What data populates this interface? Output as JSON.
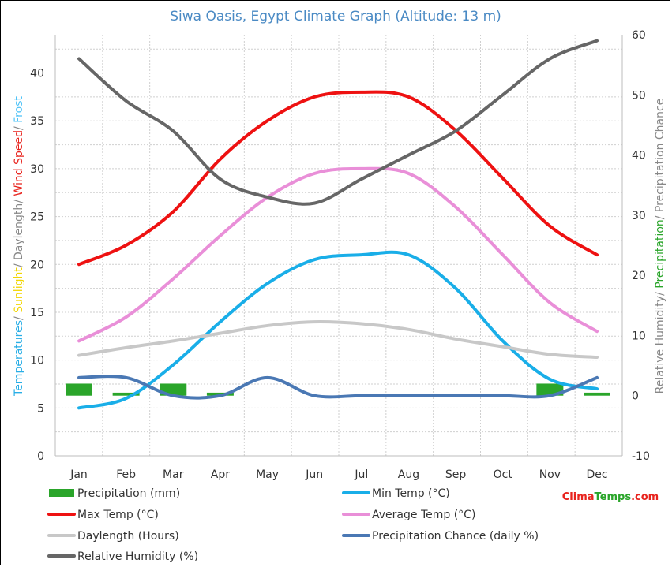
{
  "chart_data": {
    "type": "line",
    "title": "Siwa Oasis, Egypt Climate Graph (Altitude: 13 m)",
    "categories": [
      "Jan",
      "Feb",
      "Mar",
      "Apr",
      "May",
      "Jun",
      "Jul",
      "Aug",
      "Sep",
      "Oct",
      "Nov",
      "Dec"
    ],
    "left_axis": {
      "label_parts": [
        {
          "text": "Temperatures",
          "color": "#29aee6"
        },
        {
          "text": "/ ",
          "color": "#888888"
        },
        {
          "text": "Sunlight",
          "color": "#f2d600"
        },
        {
          "text": "/ Daylength",
          "color": "#888888"
        },
        {
          "text": "/ ",
          "color": "#888888"
        },
        {
          "text": "Wind Speed",
          "color": "#e8231d"
        },
        {
          "text": "/ ",
          "color": "#888888"
        },
        {
          "text": "Frost",
          "color": "#4fc3f7"
        }
      ],
      "ylim": [
        0,
        44
      ],
      "ticks": [
        0,
        5,
        10,
        15,
        20,
        25,
        30,
        35,
        40
      ]
    },
    "right_axis": {
      "label_parts": [
        {
          "text": "Relative Humidity",
          "color": "#888888"
        },
        {
          "text": "/ ",
          "color": "#888888"
        },
        {
          "text": "Precipitation",
          "color": "#2aa52a"
        },
        {
          "text": "/ Precipitation Chance",
          "color": "#888888"
        }
      ],
      "ylim": [
        -10,
        60
      ],
      "ticks": [
        -10,
        0,
        10,
        20,
        30,
        40,
        50,
        60
      ]
    },
    "grid": true,
    "legend_placement": "bottom",
    "series": [
      {
        "name": "Precipitation (mm)",
        "kind": "bar",
        "axis": "right",
        "color": "#2aa52a",
        "values": [
          2,
          0.5,
          2,
          0.5,
          0,
          0,
          0,
          0,
          0,
          0,
          2,
          0.5
        ]
      },
      {
        "name": "Min Temp (°C)",
        "kind": "line",
        "axis": "left",
        "color": "#19aee8",
        "values": [
          5,
          6,
          9.5,
          14,
          18,
          20.5,
          21,
          21,
          17.5,
          12,
          8,
          7
        ]
      },
      {
        "name": "Max Temp (°C)",
        "kind": "line",
        "axis": "left",
        "color": "#ee1111",
        "values": [
          20,
          22,
          25.5,
          31,
          35,
          37.5,
          38,
          37.5,
          34,
          29,
          24,
          21
        ]
      },
      {
        "name": "Average Temp (°C)",
        "kind": "line",
        "axis": "left",
        "color": "#e98fd8",
        "values": [
          12,
          14.5,
          18.5,
          23,
          27,
          29.5,
          30,
          29.5,
          26,
          21,
          16,
          13
        ]
      },
      {
        "name": "Daylength (Hours)",
        "kind": "line",
        "axis": "left",
        "color": "#c8c8c8",
        "values": [
          10.5,
          11.3,
          12,
          12.8,
          13.6,
          14,
          13.8,
          13.2,
          12.2,
          11.4,
          10.6,
          10.3
        ]
      },
      {
        "name": "Precipitation Chance (daily %)",
        "kind": "line",
        "axis": "right",
        "color": "#4a78b4",
        "values": [
          3,
          3,
          0,
          0,
          3,
          0,
          0,
          0,
          0,
          0,
          0,
          3
        ]
      },
      {
        "name": "Relative Humidity (%)",
        "kind": "line",
        "axis": "right",
        "color": "#666666",
        "values": [
          56,
          49,
          44,
          36,
          33,
          32,
          36,
          40,
          44,
          50,
          56,
          59
        ]
      }
    ],
    "legend": [
      {
        "name": "Precipitation (mm)",
        "color": "#2aa52a",
        "shape": "bar"
      },
      {
        "name": "Min Temp (°C)",
        "color": "#19aee8",
        "shape": "line"
      },
      {
        "name": "Max Temp (°C)",
        "color": "#ee1111",
        "shape": "line"
      },
      {
        "name": "Average Temp (°C)",
        "color": "#e98fd8",
        "shape": "line"
      },
      {
        "name": "Daylength (Hours)",
        "color": "#c8c8c8",
        "shape": "line"
      },
      {
        "name": "Precipitation Chance (daily %)",
        "color": "#4a78b4",
        "shape": "line"
      },
      {
        "name": "Relative Humidity (%)",
        "color": "#666666",
        "shape": "line"
      }
    ],
    "watermark": {
      "text_a": "Clima",
      "text_b": "Temps",
      "text_c": ".com",
      "color_a": "#e8231d",
      "color_b": "#2aa52a",
      "color_c": "#e8231d"
    }
  }
}
